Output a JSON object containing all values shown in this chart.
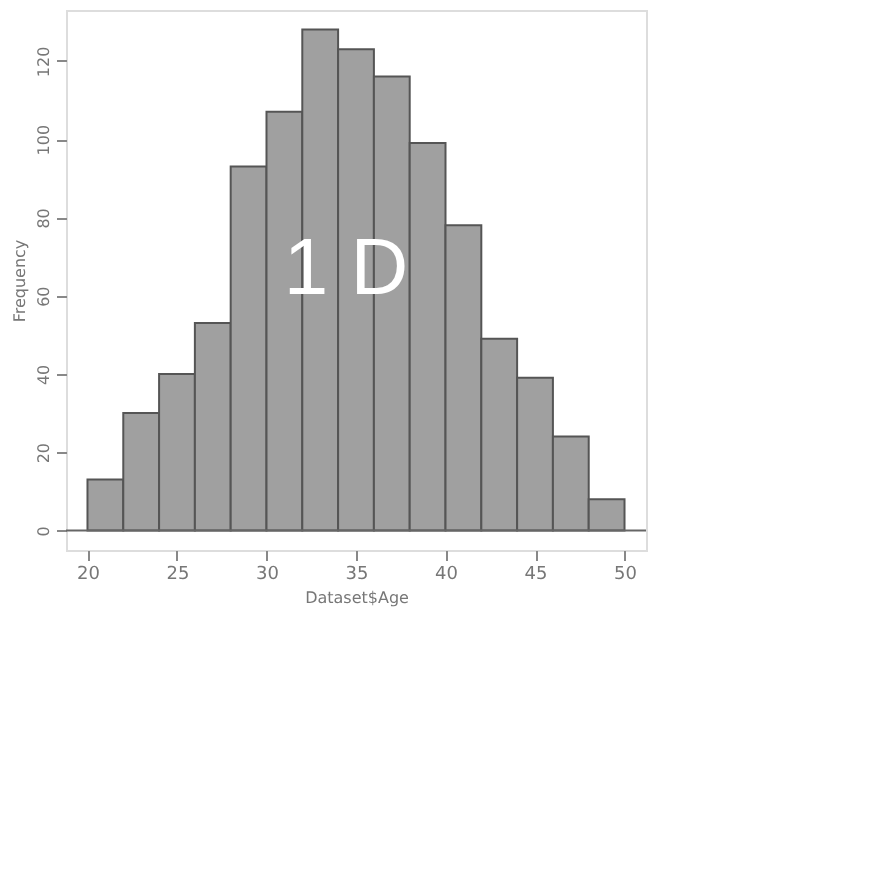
{
  "chart_data": {
    "type": "histogram",
    "xlabel": "Dataset$Age",
    "ylabel": "Frequency",
    "bins": [
      20,
      22,
      24,
      26,
      28,
      30,
      32,
      34,
      36,
      38,
      40,
      42,
      44,
      46,
      48,
      50
    ],
    "values": [
      13,
      30,
      40,
      53,
      93,
      107,
      128,
      123,
      116,
      99,
      78,
      49,
      39,
      24,
      8
    ],
    "color": "#a0a0a0",
    "xlim": [
      18.8,
      51.2
    ],
    "ylim": [
      -5,
      133
    ],
    "xticks": [
      20,
      25,
      30,
      35,
      40,
      45,
      50
    ],
    "yticks": [
      0,
      20,
      40,
      60,
      80,
      100,
      120
    ],
    "annotations": [
      "1 D"
    ]
  }
}
